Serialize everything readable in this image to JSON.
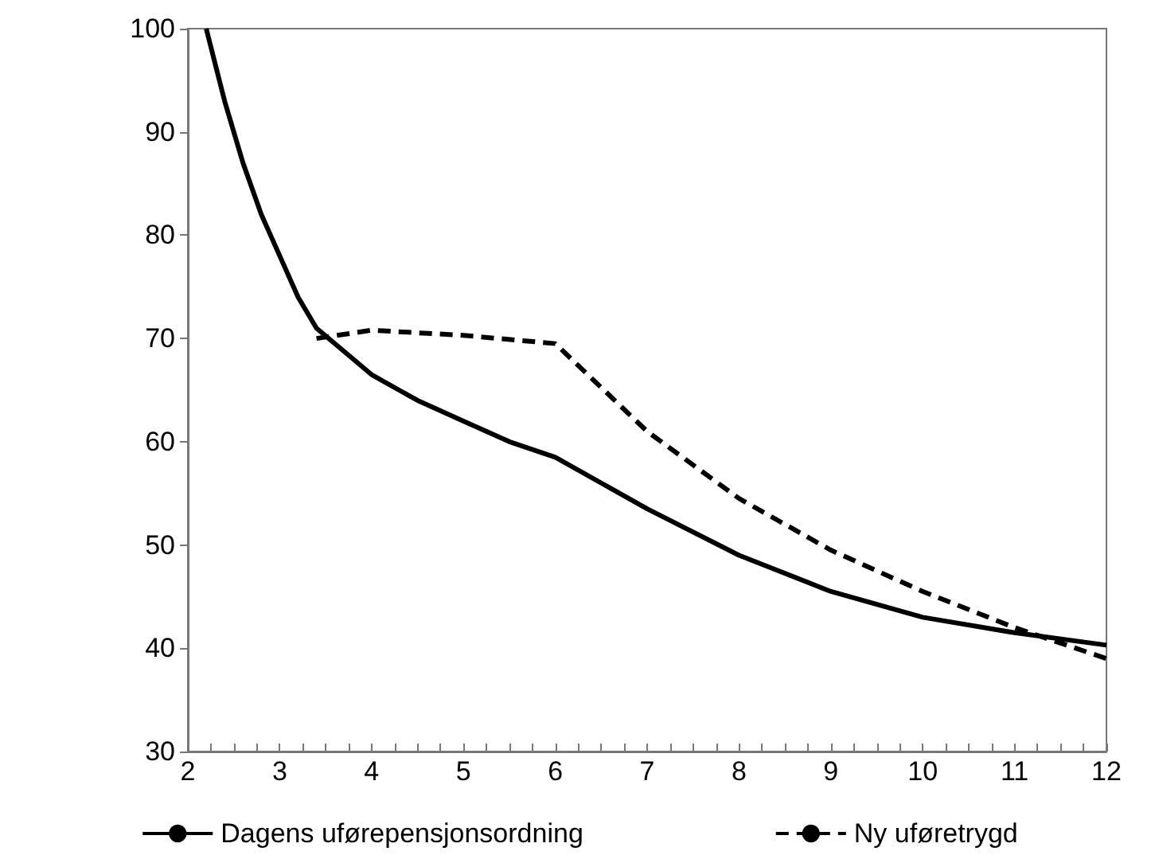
{
  "chart_data": {
    "type": "line",
    "xlim": [
      2,
      12
    ],
    "ylim": [
      30,
      100
    ],
    "xticks": [
      2,
      {
        "value": 2.25,
        "label": null
      },
      {
        "value": 2.5,
        "label": null
      },
      {
        "value": 2.75,
        "label": null
      },
      3,
      {
        "value": 3.25,
        "label": null
      },
      {
        "value": 3.5,
        "label": null
      },
      {
        "value": 3.75,
        "label": null
      },
      4,
      {
        "value": 4.25,
        "label": null
      },
      {
        "value": 4.5,
        "label": null
      },
      {
        "value": 4.75,
        "label": null
      },
      5,
      {
        "value": 5.25,
        "label": null
      },
      {
        "value": 5.5,
        "label": null
      },
      {
        "value": 5.75,
        "label": null
      },
      6,
      {
        "value": 6.25,
        "label": null
      },
      {
        "value": 6.5,
        "label": null
      },
      {
        "value": 6.75,
        "label": null
      },
      7,
      {
        "value": 7.25,
        "label": null
      },
      {
        "value": 7.5,
        "label": null
      },
      {
        "value": 7.75,
        "label": null
      },
      8,
      {
        "value": 8.25,
        "label": null
      },
      {
        "value": 8.5,
        "label": null
      },
      {
        "value": 8.75,
        "label": null
      },
      9,
      {
        "value": 9.25,
        "label": null
      },
      {
        "value": 9.5,
        "label": null
      },
      {
        "value": 9.75,
        "label": null
      },
      10,
      {
        "value": 10.25,
        "label": null
      },
      {
        "value": 10.5,
        "label": null
      },
      {
        "value": 10.75,
        "label": null
      },
      11,
      {
        "value": 11.25,
        "label": null
      },
      {
        "value": 11.5,
        "label": null
      },
      {
        "value": 11.75,
        "label": null
      },
      12
    ],
    "yticks": [
      30,
      40,
      50,
      60,
      70,
      80,
      90,
      100
    ],
    "grid": false,
    "legend": "bottom",
    "marker": "none",
    "series": [
      {
        "name": "Dagens uførepensjonsordning",
        "color": "#000000",
        "line_style": "solid",
        "x": [
          2.2,
          2.4,
          2.6,
          2.8,
          3,
          3.2,
          3.4,
          4,
          4.5,
          5,
          5.5,
          6,
          7,
          8,
          9,
          10,
          11,
          12
        ],
        "values": [
          100,
          93,
          87,
          82,
          78,
          74,
          71,
          66.5,
          64,
          62,
          60,
          58.5,
          53.5,
          49,
          45.5,
          43,
          41.5,
          40.3
        ]
      },
      {
        "name": "Ny uføretrygd",
        "color": "#000000",
        "line_style": "dashed",
        "x": [
          3.4,
          4,
          5,
          6,
          7,
          8,
          9,
          10,
          11,
          12
        ],
        "values": [
          70,
          70.8,
          70.3,
          69.5,
          61,
          54.5,
          49.5,
          45.5,
          42,
          39
        ]
      }
    ]
  }
}
